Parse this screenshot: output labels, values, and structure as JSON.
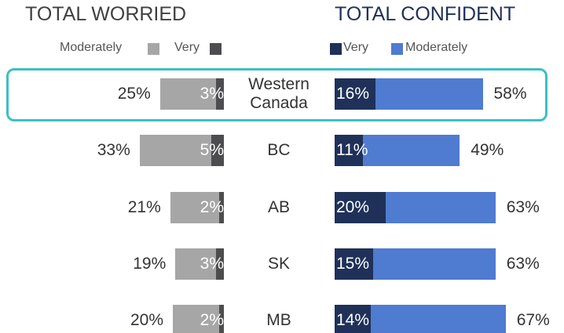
{
  "chart_data": {
    "type": "diverging_bar",
    "categories": [
      "Western Canada",
      "BC",
      "AB",
      "SK",
      "MB"
    ],
    "left": {
      "title": "TOTAL WORRIED",
      "series": [
        {
          "name": "Moderately",
          "color": "#a6a6a6",
          "values": [
            22,
            28,
            19,
            16,
            18
          ]
        },
        {
          "name": "Very",
          "color": "#4d4d4f",
          "values": [
            3,
            5,
            2,
            3,
            2
          ],
          "value_labels": [
            "3%",
            "5%",
            "2%",
            "3%",
            "2%"
          ]
        }
      ],
      "totals": {
        "values": [
          25,
          33,
          21,
          19,
          20
        ],
        "value_labels": [
          "25%",
          "33%",
          "21%",
          "19%",
          "20%"
        ]
      }
    },
    "right": {
      "title": "TOTAL CONFIDENT",
      "series": [
        {
          "name": "Very",
          "color": "#1f3158",
          "values": [
            16,
            11,
            20,
            15,
            14
          ],
          "value_labels": [
            "16%",
            "11%",
            "20%",
            "15%",
            "14%"
          ]
        },
        {
          "name": "Moderately",
          "color": "#4f7bd0",
          "values": [
            42,
            38,
            43,
            48,
            53
          ]
        }
      ],
      "totals": {
        "values": [
          58,
          49,
          63,
          63,
          67
        ],
        "value_labels": [
          "58%",
          "49%",
          "63%",
          "63%",
          "67%"
        ]
      }
    }
  }
}
